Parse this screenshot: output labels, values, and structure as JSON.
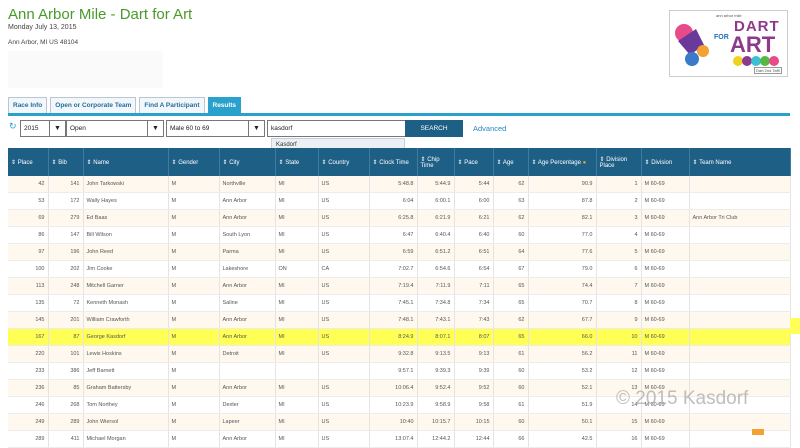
{
  "header": {
    "title": "Ann Arbor Mile - Dart for Art",
    "date": "Monday July 13, 2015",
    "location": "Ann Arbor, MI US 48104"
  },
  "logo": {
    "small_text": "ann arbor mile",
    "dart": "DART",
    "for": "FOR",
    "art": "ART",
    "tag": "Dart 2nd Taffi"
  },
  "tabs": [
    {
      "label": "Race Info"
    },
    {
      "label": "Open or Corporate Team"
    },
    {
      "label": "Find A Participant"
    },
    {
      "label": "Results"
    }
  ],
  "filters": {
    "year": "2015",
    "category": "Open",
    "group": "Male 60 to 69",
    "search_value": "kasdorf",
    "search_button": "SEARCH",
    "advanced": "Advanced",
    "suggestion": "Kasdorf"
  },
  "table": {
    "headers": [
      "Place",
      "Bib",
      "Name",
      "Gender",
      "City",
      "State",
      "Country",
      "Clock Time",
      "Chip Time",
      "Pace",
      "Age",
      "Age Percentage",
      "Division Place",
      "Division",
      "Team Name"
    ],
    "rows": [
      [
        "42",
        "141",
        "John Tarkowski",
        "M",
        "Northville",
        "MI",
        "US",
        "5:48.8",
        "5:44.9",
        "5:44",
        "62",
        "90.9",
        "1",
        "M 60-69",
        ""
      ],
      [
        "53",
        "172",
        "Wally Hayes",
        "M",
        "Ann Arbor",
        "MI",
        "US",
        "6:04",
        "6:00.1",
        "6:00",
        "63",
        "87.8",
        "2",
        "M 60-69",
        ""
      ],
      [
        "69",
        "279",
        "Ed Baas",
        "M",
        "Ann Arbor",
        "MI",
        "US",
        "6:25.8",
        "6:21.9",
        "6:21",
        "62",
        "82.1",
        "3",
        "M 60-69",
        "Ann Arbor Tri Club"
      ],
      [
        "86",
        "147",
        "Bill Wilson",
        "M",
        "South Lyon",
        "MI",
        "US",
        "6:47",
        "6:40.4",
        "6:40",
        "60",
        "77.0",
        "4",
        "M 60-69",
        ""
      ],
      [
        "97",
        "196",
        "John Reed",
        "M",
        "Parma",
        "MI",
        "US",
        "6:59",
        "6:51.2",
        "6:51",
        "64",
        "77.6",
        "5",
        "M 60-69",
        ""
      ],
      [
        "100",
        "202",
        "Jim Cooke",
        "M",
        "Lakeshore",
        "ON",
        "CA",
        "7:02.7",
        "6:54.6",
        "6:54",
        "67",
        "79.0",
        "6",
        "M 60-69",
        ""
      ],
      [
        "113",
        "248",
        "Mitchell Garner",
        "M",
        "Ann Arbor",
        "MI",
        "US",
        "7:19.4",
        "7:11.9",
        "7:11",
        "65",
        "74.4",
        "7",
        "M 60-69",
        ""
      ],
      [
        "135",
        "72",
        "Kenneth Monash",
        "M",
        "Saline",
        "MI",
        "US",
        "7:45.1",
        "7:34.8",
        "7:34",
        "65",
        "70.7",
        "8",
        "M 60-69",
        ""
      ],
      [
        "145",
        "201",
        "William Crawforth",
        "M",
        "Ann Arbor",
        "MI",
        "US",
        "7:48.1",
        "7:43.1",
        "7:43",
        "62",
        "67.7",
        "9",
        "M 60-69",
        ""
      ],
      [
        "167",
        "87",
        "George Kasdorf",
        "M",
        "Ann Arbor",
        "MI",
        "US",
        "8:24.9",
        "8:07.1",
        "8:07",
        "65",
        "66.0",
        "10",
        "M 60-69",
        ""
      ],
      [
        "220",
        "101",
        "Lewis Hoskins",
        "M",
        "Detroit",
        "MI",
        "US",
        "9:32.8",
        "9:13.5",
        "9:13",
        "61",
        "56.2",
        "11",
        "M 60-69",
        ""
      ],
      [
        "233",
        "386",
        "Jeff Barnett",
        "M",
        "",
        "",
        "",
        "9:57.1",
        "9:39.3",
        "9:39",
        "60",
        "53.2",
        "12",
        "M 60-69",
        ""
      ],
      [
        "236",
        "85",
        "Graham Battersby",
        "M",
        "Ann Arbor",
        "MI",
        "US",
        "10:06.4",
        "9:52.4",
        "9:52",
        "60",
        "52.1",
        "13",
        "M 60-69",
        ""
      ],
      [
        "246",
        "268",
        "Tom Northey",
        "M",
        "Dexter",
        "MI",
        "US",
        "10:23.9",
        "9:58.9",
        "9:58",
        "61",
        "51.9",
        "14",
        "M 60-69",
        ""
      ],
      [
        "249",
        "289",
        "John Wiersol",
        "M",
        "Lapeer",
        "MI",
        "US",
        "10:40",
        "10:15.7",
        "10:15",
        "60",
        "50.1",
        "15",
        "M 60-69",
        ""
      ],
      [
        "289",
        "411",
        "Michael Morgan",
        "M",
        "Ann Arbor",
        "MI",
        "US",
        "13:07.4",
        "12:44.2",
        "12:44",
        "66",
        "42.5",
        "16",
        "M 60-69",
        ""
      ]
    ]
  },
  "watermark": "© 2015 Kasdorf",
  "colors": {
    "accent": "#2aa0cc",
    "header": "#1e5f86",
    "highlight": "#ffff55",
    "title": "#4a9a2a"
  }
}
